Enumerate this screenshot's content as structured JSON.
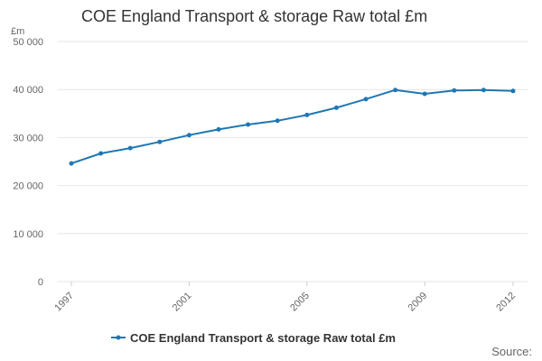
{
  "chart_data": {
    "type": "line",
    "title": "COE England Transport & storage Raw total £m",
    "ylabel": "£m",
    "xlabel": "",
    "ylim": [
      0,
      50000
    ],
    "yticks": [
      "0",
      "10 000",
      "20 000",
      "30 000",
      "40 000",
      "50 000"
    ],
    "ytick_values": [
      0,
      10000,
      20000,
      30000,
      40000,
      50000
    ],
    "xtick_labels": [
      "1997",
      "2001",
      "2005",
      "2009",
      "2012"
    ],
    "xlim": [
      1997,
      2012
    ],
    "grid": true,
    "legend_position": "bottom",
    "series": [
      {
        "name": "COE England Transport & storage Raw total £m",
        "color": "#1f77b4",
        "x": [
          1997,
          1998,
          1999,
          2000,
          2001,
          2002,
          2003,
          2004,
          2005,
          2006,
          2007,
          2008,
          2009,
          2010,
          2011,
          2012
        ],
        "values": [
          24600,
          26700,
          27800,
          29100,
          30500,
          31700,
          32700,
          33500,
          34700,
          36200,
          38000,
          39900,
          39100,
          39800,
          39900,
          39700
        ]
      }
    ]
  },
  "source_label": "Source:"
}
